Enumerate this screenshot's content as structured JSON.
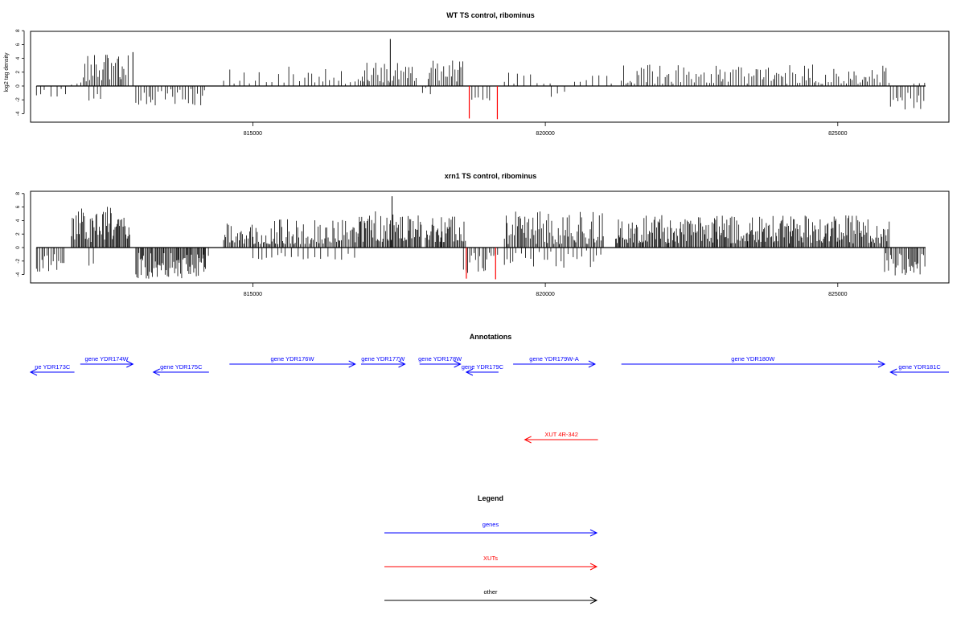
{
  "colors": {
    "gene": "#0000ff",
    "xut": "#ff0000",
    "other": "#000000",
    "axis": "#000000"
  },
  "panels": [
    {
      "title": "WT TS control, ribominus",
      "ylabel": "log2 tag density",
      "xlim": [
        811200,
        826900
      ],
      "ylim": [
        -5,
        8
      ],
      "yticks": [
        -4,
        -2,
        0,
        2,
        4,
        6,
        8
      ],
      "xticks": [
        815000,
        820000,
        825000
      ],
      "xtick_labels": [
        "815000",
        "820000",
        "825000"
      ],
      "highlight": [
        {
          "x": 818700,
          "y": -4.7
        },
        {
          "x": 819180,
          "y": -4.8
        }
      ],
      "segments": [
        {
          "from": 811300,
          "to": 811800,
          "min": -1.6,
          "max": 0,
          "step": 90,
          "seed": 11
        },
        {
          "from": 811900,
          "to": 812100,
          "min": 0,
          "max": 1.2,
          "step": 60,
          "seed": 12
        },
        {
          "from": 812100,
          "to": 812900,
          "min": 0.6,
          "max": 4.6,
          "step": 30,
          "seed": 13
        },
        {
          "from": 812200,
          "to": 812400,
          "min": -2.4,
          "max": -0.5,
          "step": 80,
          "seed": 14
        },
        {
          "from": 813000,
          "to": 814200,
          "min": -2.8,
          "max": -0.4,
          "step": 45,
          "seed": 15
        },
        {
          "from": 814500,
          "to": 815800,
          "min": 0.3,
          "max": 3.2,
          "step": 90,
          "seed": 16
        },
        {
          "from": 815800,
          "to": 816800,
          "min": 0.3,
          "max": 2.8,
          "step": 70,
          "seed": 17
        },
        {
          "from": 816800,
          "to": 817800,
          "min": 0.5,
          "max": 3.5,
          "step": 32,
          "seed": 18
        },
        {
          "from": 817900,
          "to": 818100,
          "min": -1.2,
          "max": 0,
          "step": 90,
          "seed": 19
        },
        {
          "from": 818000,
          "to": 818600,
          "min": 0.5,
          "max": 3.8,
          "step": 30,
          "seed": 20
        },
        {
          "from": 818700,
          "to": 819100,
          "min": -2.2,
          "max": -0.4,
          "step": 60,
          "seed": 21
        },
        {
          "from": 819300,
          "to": 820100,
          "min": 0.3,
          "max": 2.2,
          "step": 90,
          "seed": 22
        },
        {
          "from": 820100,
          "to": 820400,
          "min": -1.8,
          "max": -0.3,
          "step": 120,
          "seed": 23
        },
        {
          "from": 820500,
          "to": 821200,
          "min": 0.3,
          "max": 2.2,
          "step": 100,
          "seed": 24
        },
        {
          "from": 821300,
          "to": 825900,
          "min": 0.3,
          "max": 3.2,
          "step": 38,
          "seed": 25
        },
        {
          "from": 825900,
          "to": 826500,
          "min": -3.4,
          "max": -0.8,
          "step": 45,
          "seed": 26
        },
        {
          "from": 826300,
          "to": 826500,
          "min": 0.2,
          "max": 1.1,
          "step": 80,
          "seed": 27
        }
      ],
      "spikes": [
        {
          "x": 817350,
          "y": 6.8
        },
        {
          "x": 812950,
          "y": 4.9
        }
      ]
    },
    {
      "title": "xrn1 TS control, ribominus",
      "ylabel": "",
      "xlim": [
        811200,
        826900
      ],
      "ylim": [
        -5,
        8
      ],
      "yticks": [
        -4,
        -2,
        0,
        2,
        4,
        6,
        8
      ],
      "xticks": [
        815000,
        820000,
        825000
      ],
      "xtick_labels": [
        "815000",
        "820000",
        "825000"
      ],
      "highlight": [
        {
          "x": 818650,
          "y": -4.6
        },
        {
          "x": 819150,
          "y": -4.7
        }
      ],
      "segments": [
        {
          "from": 811300,
          "to": 811800,
          "min": -3.6,
          "max": -0.8,
          "step": 30,
          "seed": 31
        },
        {
          "from": 811900,
          "to": 812900,
          "min": 0.8,
          "max": 6.2,
          "step": 18,
          "seed": 32
        },
        {
          "from": 812200,
          "to": 812300,
          "min": -3.0,
          "max": -1.0,
          "step": 90,
          "seed": 33
        },
        {
          "from": 813000,
          "to": 814200,
          "min": -4.6,
          "max": -0.8,
          "step": 18,
          "seed": 34
        },
        {
          "from": 814100,
          "to": 814300,
          "min": -2.5,
          "max": -0.5,
          "step": 60,
          "seed": 35
        },
        {
          "from": 814500,
          "to": 816800,
          "min": 0.5,
          "max": 4.2,
          "step": 22,
          "seed": 36
        },
        {
          "from": 815000,
          "to": 816800,
          "min": -1.8,
          "max": -0.4,
          "step": 90,
          "seed": 37
        },
        {
          "from": 816800,
          "to": 817900,
          "min": 0.8,
          "max": 5.5,
          "step": 18,
          "seed": 38
        },
        {
          "from": 817950,
          "to": 818650,
          "min": 0.8,
          "max": 4.8,
          "step": 18,
          "seed": 39
        },
        {
          "from": 818600,
          "to": 819200,
          "min": -3.8,
          "max": -0.6,
          "step": 35,
          "seed": 40
        },
        {
          "from": 819300,
          "to": 821000,
          "min": 0.5,
          "max": 5.4,
          "step": 22,
          "seed": 41
        },
        {
          "from": 819300,
          "to": 821000,
          "min": -3.0,
          "max": -0.4,
          "step": 70,
          "seed": 42
        },
        {
          "from": 821200,
          "to": 825900,
          "min": 0.6,
          "max": 4.8,
          "step": 18,
          "seed": 43
        },
        {
          "from": 825800,
          "to": 826500,
          "min": -4.2,
          "max": -0.6,
          "step": 25,
          "seed": 44
        }
      ],
      "spikes": [
        {
          "x": 817380,
          "y": 7.6
        }
      ]
    }
  ],
  "annotations": {
    "title": "Annotations",
    "items": [
      {
        "label": "ne YDR173C",
        "x0": 811200,
        "x1": 811950,
        "strand": "-",
        "color": "#0000ff",
        "row": 1
      },
      {
        "label": "gene YDR174W",
        "x0": 812050,
        "x1": 812950,
        "strand": "+",
        "color": "#0000ff",
        "row": 0
      },
      {
        "label": "gene YDR175C",
        "x0": 813300,
        "x1": 814250,
        "strand": "-",
        "color": "#0000ff",
        "row": 1
      },
      {
        "label": "gene YDR176W",
        "x0": 814600,
        "x1": 816750,
        "strand": "+",
        "color": "#0000ff",
        "row": 0
      },
      {
        "label": "gene YDR177W",
        "x0": 816850,
        "x1": 817600,
        "strand": "+",
        "color": "#0000ff",
        "row": 0
      },
      {
        "label": "gene YDR178W",
        "x0": 817850,
        "x1": 818550,
        "strand": "+",
        "color": "#0000ff",
        "row": 0
      },
      {
        "label": "gene YDR179C",
        "x0": 818650,
        "x1": 819200,
        "strand": "-",
        "color": "#0000ff",
        "row": 1
      },
      {
        "label": "gene YDR179W-A",
        "x0": 819450,
        "x1": 820850,
        "strand": "+",
        "color": "#0000ff",
        "row": 0
      },
      {
        "label": "gene YDR180W",
        "x0": 821300,
        "x1": 825800,
        "strand": "+",
        "color": "#0000ff",
        "row": 0
      },
      {
        "label": "gene YDR181C",
        "x0": 825900,
        "x1": 826900,
        "strand": "-",
        "color": "#0000ff",
        "row": 1
      },
      {
        "label": "XUT 4R-342",
        "x0": 819650,
        "x1": 820900,
        "strand": "-",
        "color": "#ff0000",
        "row": 2
      }
    ]
  },
  "legend": {
    "title": "Legend",
    "items": [
      {
        "label": "genes",
        "color": "#0000ff"
      },
      {
        "label": "XUTs",
        "color": "#ff0000"
      },
      {
        "label": "other",
        "color": "#000000"
      }
    ]
  },
  "chart_data": [
    {
      "type": "bar",
      "title": "WT TS control, ribominus",
      "ylabel": "log2 tag density",
      "xlim": [
        811200,
        826900
      ],
      "ylim": [
        -5,
        8
      ],
      "x": [
        812950,
        817350,
        818700,
        819180
      ],
      "values": [
        4.9,
        6.8,
        -4.7,
        -4.8
      ]
    },
    {
      "type": "bar",
      "title": "xrn1 TS control, ribominus",
      "xlim": [
        811200,
        826900
      ],
      "ylim": [
        -5,
        8
      ],
      "x": [
        817380,
        818650,
        819150
      ],
      "values": [
        7.6,
        -4.6,
        -4.7
      ]
    }
  ]
}
